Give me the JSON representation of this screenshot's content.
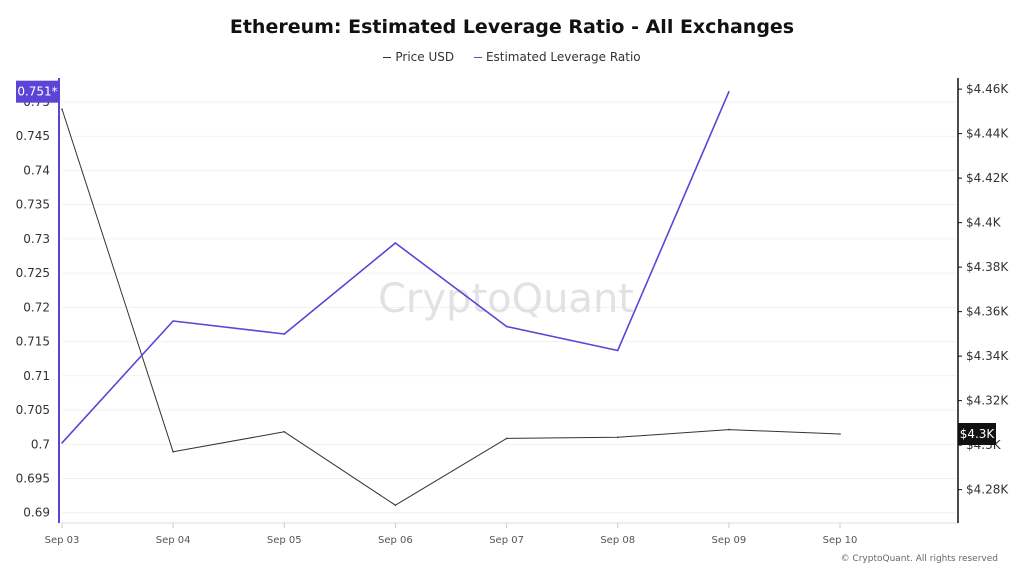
{
  "chart_data": {
    "type": "line",
    "title": "Ethereum: Estimated Leverage Ratio - All Exchanges",
    "categories": [
      "Sep 03",
      "Sep 04",
      "Sep 05",
      "Sep 06",
      "Sep 07",
      "Sep 08",
      "Sep 09",
      "Sep 10"
    ],
    "series": [
      {
        "name": "Price USD",
        "axis": "right",
        "color": "#333333",
        "values": [
          4451,
          4297,
          4306,
          4273,
          4303,
          4303.5,
          4307,
          4305
        ]
      },
      {
        "name": "Estimated Leverage Ratio",
        "axis": "left",
        "color": "#5b45d6",
        "values": [
          0.7002,
          0.718,
          0.7161,
          0.7294,
          0.7172,
          0.7137,
          0.7515,
          null
        ]
      }
    ],
    "left_axis": {
      "ylim": [
        0.6885,
        0.7535
      ],
      "ticks": [
        "0.69",
        "0.695",
        "0.7",
        "0.705",
        "0.71",
        "0.715",
        "0.72",
        "0.725",
        "0.73",
        "0.735",
        "0.74",
        "0.745",
        "0.75"
      ],
      "tick_values": [
        0.69,
        0.695,
        0.7,
        0.705,
        0.71,
        0.715,
        0.72,
        0.725,
        0.73,
        0.735,
        0.74,
        0.745,
        0.75
      ]
    },
    "right_axis": {
      "ylim": [
        4265,
        4465
      ],
      "ticks": [
        "$4.28K",
        "$4.3K",
        "$4.32K",
        "$4.34K",
        "$4.36K",
        "$4.38K",
        "$4.4K",
        "$4.42K",
        "$4.44K",
        "$4.46K"
      ],
      "tick_values": [
        4280,
        4300,
        4320,
        4340,
        4360,
        4380,
        4400,
        4420,
        4440,
        4460
      ]
    },
    "last_value_labels": {
      "left": {
        "text": "0.751*",
        "value": 0.7515,
        "color": "#5b45d6"
      },
      "right": {
        "text": "$4.3K",
        "value": 4305,
        "color": "#111111"
      }
    },
    "grid": true,
    "legend_placement": "top-center"
  },
  "watermark": "CryptoQuant",
  "copyright": "© CryptoQuant. All rights reserved"
}
